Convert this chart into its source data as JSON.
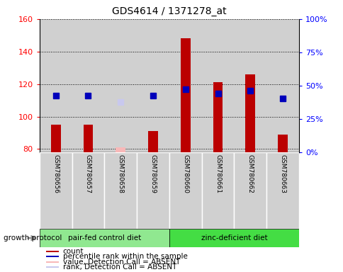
{
  "title": "GDS4614 / 1371278_at",
  "samples": [
    "GSM780656",
    "GSM780657",
    "GSM780658",
    "GSM780659",
    "GSM780660",
    "GSM780661",
    "GSM780662",
    "GSM780663"
  ],
  "count_values": [
    95,
    95,
    null,
    91,
    148,
    121,
    126,
    89
  ],
  "count_absent": [
    null,
    null,
    81,
    null,
    null,
    null,
    null,
    null
  ],
  "rank_values": [
    113,
    113,
    null,
    113,
    117,
    114,
    116,
    111
  ],
  "rank_absent": [
    null,
    null,
    109,
    null,
    null,
    null,
    null,
    null
  ],
  "ylim_left": [
    78,
    160
  ],
  "ylim_right": [
    0,
    100
  ],
  "yticks_left": [
    80,
    100,
    120,
    140,
    160
  ],
  "yticks_right": [
    0,
    25,
    50,
    75,
    100
  ],
  "ytick_labels_right": [
    "0%",
    "25%",
    "50%",
    "75%",
    "100%"
  ],
  "groups": [
    {
      "label": "pair-fed control diet",
      "indices": [
        0,
        1,
        2,
        3
      ],
      "color": "#90e890"
    },
    {
      "label": "zinc-deficient diet",
      "indices": [
        4,
        5,
        6,
        7
      ],
      "color": "#44dd44"
    }
  ],
  "group_protocol_label": "growth protocol",
  "bar_bottom": 78,
  "bar_color": "#bb0000",
  "rank_color": "#0000bb",
  "absent_bar_color": "#f8b8b8",
  "absent_rank_color": "#c8c8ee",
  "col_bg_color": "#d0d0d0",
  "legend_items": [
    {
      "label": "count",
      "color": "#bb0000"
    },
    {
      "label": "percentile rank within the sample",
      "color": "#0000bb"
    },
    {
      "label": "value, Detection Call = ABSENT",
      "color": "#f8b8b8"
    },
    {
      "label": "rank, Detection Call = ABSENT",
      "color": "#c8c8ee"
    }
  ]
}
